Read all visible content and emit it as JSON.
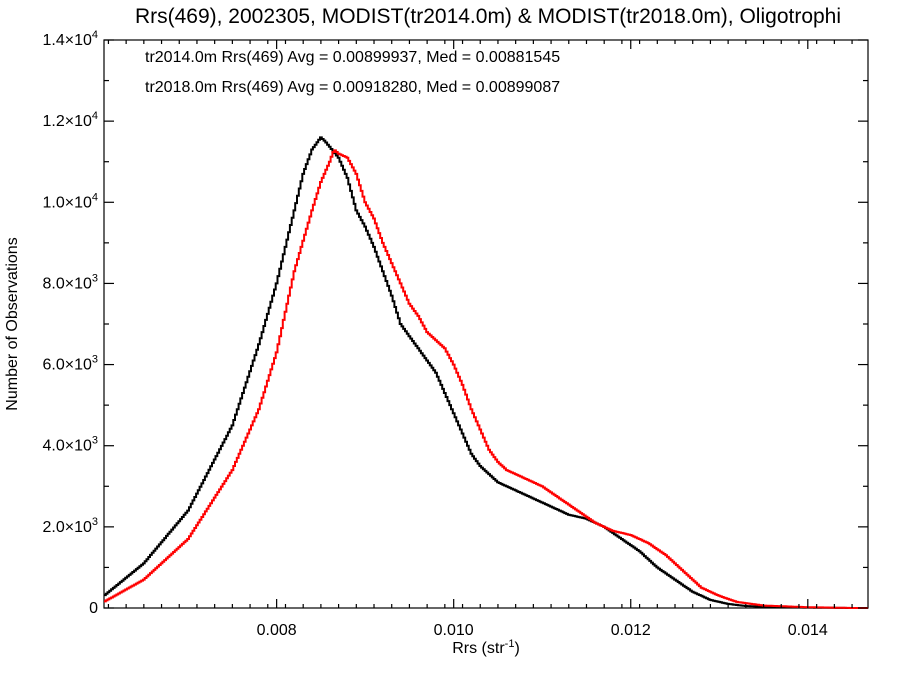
{
  "chart_data": {
    "type": "line",
    "title": "Rrs(469), 2002305, MODIST(tr2014.0m) & MODIST(tr2018.0m), Oligotrophi",
    "xlabel_base": "Rrs (str",
    "xlabel_sup": "-1",
    "xlabel_close": ")",
    "ylabel": "Number of Observations",
    "xlim": [
      0.00605,
      0.01468
    ],
    "ylim": [
      0,
      14000
    ],
    "x_ticks": [
      {
        "value": 0.008,
        "label": "0.008"
      },
      {
        "value": 0.01,
        "label": "0.010"
      },
      {
        "value": 0.012,
        "label": "0.012"
      },
      {
        "value": 0.014,
        "label": "0.014"
      }
    ],
    "y_ticks": [
      {
        "value": 0,
        "mant": "0",
        "exp": ""
      },
      {
        "value": 2000,
        "mant": "2.0×10",
        "exp": "3"
      },
      {
        "value": 4000,
        "mant": "4.0×10",
        "exp": "3"
      },
      {
        "value": 6000,
        "mant": "6.0×10",
        "exp": "3"
      },
      {
        "value": 8000,
        "mant": "8.0×10",
        "exp": "3"
      },
      {
        "value": 10000,
        "mant": "1.0×10",
        "exp": "4"
      },
      {
        "value": 12000,
        "mant": "1.2×10",
        "exp": "4"
      },
      {
        "value": 14000,
        "mant": "1.4×10",
        "exp": "4"
      }
    ],
    "grid": false,
    "legend_placement": "top-left",
    "series": [
      {
        "label": "tr2014.0m Rrs(469) Avg = 0.00899937, Med = 0.00881545",
        "color": "#000000",
        "x": [
          0.00605,
          0.0065,
          0.007,
          0.0075,
          0.0078,
          0.008,
          0.0082,
          0.0083,
          0.0084,
          0.0085,
          0.00855,
          0.0087,
          0.0088,
          0.0089,
          0.009,
          0.0091,
          0.0092,
          0.0093,
          0.0094,
          0.0095,
          0.0096,
          0.0098,
          0.01,
          0.0101,
          0.0102,
          0.0103,
          0.0104,
          0.0105,
          0.0106,
          0.0108,
          0.011,
          0.0112,
          0.0113,
          0.0115,
          0.0117,
          0.0119,
          0.0121,
          0.0123,
          0.0125,
          0.0127,
          0.0129,
          0.0131,
          0.0133,
          0.0136,
          0.014,
          0.0145,
          0.01468
        ],
        "y": [
          300,
          1100,
          2400,
          4500,
          6500,
          8000,
          9800,
          10700,
          11300,
          11600,
          11500,
          11100,
          10600,
          9800,
          9400,
          8900,
          8300,
          7700,
          7000,
          6700,
          6400,
          5800,
          4800,
          4300,
          3800,
          3500,
          3300,
          3100,
          3000,
          2800,
          2600,
          2400,
          2300,
          2200,
          2000,
          1700,
          1400,
          1000,
          700,
          400,
          200,
          100,
          50,
          20,
          10,
          0,
          0
        ]
      },
      {
        "label": "tr2018.0m Rrs(469) Avg = 0.00918280, Med = 0.00899087",
        "color": "#ff0000",
        "x": [
          0.00605,
          0.0065,
          0.007,
          0.0075,
          0.0078,
          0.008,
          0.0082,
          0.0084,
          0.0085,
          0.0086,
          0.00865,
          0.0087,
          0.0088,
          0.0089,
          0.009,
          0.0091,
          0.0092,
          0.0093,
          0.0094,
          0.0095,
          0.0096,
          0.0097,
          0.0098,
          0.0099,
          0.01,
          0.0101,
          0.0102,
          0.0103,
          0.0104,
          0.0105,
          0.0106,
          0.0107,
          0.0108,
          0.011,
          0.0112,
          0.0114,
          0.0116,
          0.0118,
          0.012,
          0.0122,
          0.0124,
          0.0126,
          0.0128,
          0.013,
          0.0132,
          0.0135,
          0.014,
          0.0145,
          0.01468
        ],
        "y": [
          150,
          700,
          1700,
          3400,
          4900,
          6300,
          8300,
          9800,
          10500,
          11000,
          11300,
          11200,
          11100,
          10700,
          10000,
          9600,
          9000,
          8500,
          8000,
          7500,
          7200,
          6800,
          6600,
          6400,
          6000,
          5500,
          4900,
          4400,
          3900,
          3600,
          3400,
          3300,
          3200,
          3000,
          2700,
          2400,
          2100,
          1900,
          1800,
          1600,
          1300,
          900,
          500,
          300,
          150,
          60,
          20,
          0,
          0
        ]
      }
    ]
  }
}
